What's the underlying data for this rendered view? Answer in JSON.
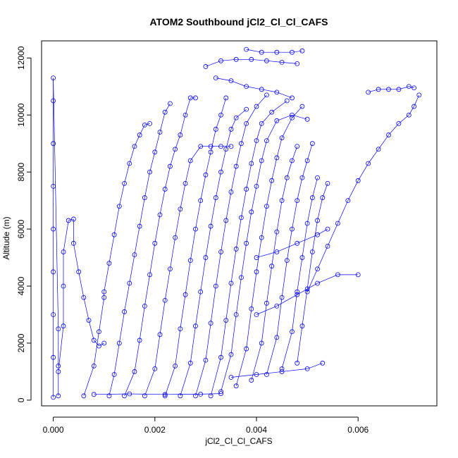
{
  "chart_data": {
    "type": "scatter",
    "title": "ATOM2 Southbound jCl2_Cl_Cl_CAFS",
    "xlabel": "jCl2_Cl_Cl_CAFS",
    "ylabel": "Altitude (m)",
    "xlim": [
      -0.00023,
      0.00755
    ],
    "ylim": [
      -200,
      12600
    ],
    "x_ticks": [
      0.0,
      0.002,
      0.004,
      0.006
    ],
    "x_tick_labels": [
      "0.000",
      "0.002",
      "0.004",
      "0.006"
    ],
    "y_ticks": [
      0,
      2000,
      4000,
      6000,
      8000,
      10000,
      12000
    ],
    "y_tick_labels": [
      "0",
      "2000",
      "4000",
      "6000",
      "8000",
      "10000",
      "12000"
    ],
    "grid": false,
    "legend": "none",
    "marker": "open-circle",
    "color": "#0000ff",
    "series": [
      {
        "points": [
          [
            0.0,
            100
          ],
          [
            0.0,
            1500
          ],
          [
            0.0,
            3000
          ],
          [
            0.0,
            4500
          ],
          [
            0.0,
            6000
          ],
          [
            0.0,
            7500
          ],
          [
            0.0,
            9000
          ],
          [
            0.0,
            10500
          ],
          [
            0.0,
            11300
          ],
          [
            0.0001,
            2500
          ],
          [
            0.0001,
            1200
          ]
        ]
      },
      {
        "points": [
          [
            0.0001,
            150
          ],
          [
            0.0001,
            1000
          ],
          [
            0.0002,
            2600
          ],
          [
            0.0002,
            4000
          ],
          [
            0.0002,
            5200
          ],
          [
            0.0003,
            6300
          ],
          [
            0.0004,
            6350
          ],
          [
            0.0004,
            5500
          ],
          [
            0.0005,
            4500
          ],
          [
            0.0006,
            3600
          ],
          [
            0.0007,
            2800
          ],
          [
            0.0008,
            2100
          ],
          [
            0.0009,
            1900
          ],
          [
            0.001,
            2000
          ]
        ]
      },
      {
        "points": [
          [
            0.0006,
            150
          ],
          [
            0.0008,
            1200
          ],
          [
            0.0009,
            2400
          ],
          [
            0.001,
            3600
          ],
          [
            0.001,
            3800
          ],
          [
            0.0011,
            4800
          ],
          [
            0.0012,
            5800
          ],
          [
            0.0013,
            6800
          ],
          [
            0.0014,
            7600
          ],
          [
            0.0015,
            8300
          ],
          [
            0.0016,
            8900
          ],
          [
            0.0017,
            9300
          ],
          [
            0.0018,
            9650
          ],
          [
            0.0019,
            9700
          ]
        ]
      },
      {
        "points": [
          [
            0.0011,
            150
          ],
          [
            0.0012,
            900
          ],
          [
            0.0013,
            2000
          ],
          [
            0.0014,
            3100
          ],
          [
            0.0015,
            4100
          ],
          [
            0.0016,
            5100
          ],
          [
            0.0017,
            6100
          ],
          [
            0.0018,
            7100
          ],
          [
            0.0019,
            8000
          ],
          [
            0.002,
            8700
          ],
          [
            0.0021,
            9400
          ],
          [
            0.0022,
            10100
          ],
          [
            0.0023,
            10400
          ]
        ]
      },
      {
        "points": [
          [
            0.0014,
            150
          ],
          [
            0.0016,
            1000
          ],
          [
            0.0017,
            2100
          ],
          [
            0.0018,
            3300
          ],
          [
            0.0019,
            4400
          ],
          [
            0.002,
            5500
          ],
          [
            0.0021,
            6500
          ],
          [
            0.0022,
            7400
          ],
          [
            0.0023,
            8200
          ],
          [
            0.0024,
            8800
          ],
          [
            0.0025,
            9300
          ],
          [
            0.0026,
            10000
          ],
          [
            0.0027,
            10600
          ],
          [
            0.0028,
            10600
          ]
        ]
      },
      {
        "points": [
          [
            0.0018,
            150
          ],
          [
            0.002,
            1100
          ],
          [
            0.0021,
            2300
          ],
          [
            0.0022,
            3500
          ],
          [
            0.0023,
            4600
          ],
          [
            0.0024,
            5700
          ],
          [
            0.0025,
            6700
          ],
          [
            0.0026,
            7600
          ],
          [
            0.0027,
            8400
          ],
          [
            0.0029,
            8900
          ],
          [
            0.0031,
            8900
          ],
          [
            0.0033,
            8900
          ],
          [
            0.0035,
            8900
          ]
        ]
      },
      {
        "points": [
          [
            0.0022,
            150
          ],
          [
            0.0024,
            1200
          ],
          [
            0.0025,
            2500
          ],
          [
            0.0026,
            3700
          ],
          [
            0.0027,
            4900
          ],
          [
            0.0028,
            6000
          ],
          [
            0.0029,
            7000
          ],
          [
            0.003,
            7900
          ],
          [
            0.0031,
            8700
          ],
          [
            0.0032,
            9500
          ],
          [
            0.0033,
            10000
          ],
          [
            0.0034,
            10600
          ]
        ]
      },
      {
        "points": [
          [
            0.0025,
            150
          ],
          [
            0.0027,
            1300
          ],
          [
            0.0028,
            2600
          ],
          [
            0.0029,
            3800
          ],
          [
            0.003,
            5000
          ],
          [
            0.0031,
            6100
          ],
          [
            0.0032,
            7100
          ],
          [
            0.0033,
            8000
          ],
          [
            0.0034,
            8800
          ],
          [
            0.0035,
            9500
          ],
          [
            0.0036,
            9900
          ],
          [
            0.0038,
            10200
          ]
        ]
      },
      {
        "points": [
          [
            0.0028,
            150
          ],
          [
            0.003,
            1400
          ],
          [
            0.0031,
            2700
          ],
          [
            0.0032,
            4000
          ],
          [
            0.0033,
            5200
          ],
          [
            0.0034,
            6300
          ],
          [
            0.0035,
            7300
          ],
          [
            0.0036,
            8200
          ],
          [
            0.0037,
            9000
          ],
          [
            0.0038,
            9700
          ],
          [
            0.004,
            10300
          ],
          [
            0.0042,
            10700
          ]
        ]
      },
      {
        "points": [
          [
            0.0031,
            150
          ],
          [
            0.0033,
            1500
          ],
          [
            0.0034,
            2800
          ],
          [
            0.0035,
            4100
          ],
          [
            0.0036,
            5300
          ],
          [
            0.0037,
            6400
          ],
          [
            0.0038,
            7400
          ],
          [
            0.0039,
            8300
          ],
          [
            0.004,
            9100
          ],
          [
            0.0041,
            9700
          ],
          [
            0.0043,
            10100
          ],
          [
            0.0046,
            10500
          ]
        ]
      },
      {
        "points": [
          [
            0.0033,
            300
          ],
          [
            0.0035,
            1600
          ],
          [
            0.0036,
            3000
          ],
          [
            0.0037,
            4300
          ],
          [
            0.0038,
            5500
          ],
          [
            0.0039,
            6600
          ],
          [
            0.004,
            7500
          ],
          [
            0.0041,
            8400
          ],
          [
            0.0042,
            9100
          ],
          [
            0.0044,
            9800
          ],
          [
            0.0047,
            10000
          ],
          [
            0.005,
            9850
          ]
        ]
      },
      {
        "points": [
          [
            0.0036,
            500
          ],
          [
            0.0038,
            1800
          ],
          [
            0.0039,
            3200
          ],
          [
            0.004,
            4500
          ],
          [
            0.0041,
            5700
          ],
          [
            0.0042,
            6800
          ],
          [
            0.0043,
            7700
          ],
          [
            0.0044,
            8500
          ],
          [
            0.0045,
            9200
          ],
          [
            0.0047,
            9900
          ],
          [
            0.0049,
            10300
          ]
        ]
      },
      {
        "points": [
          [
            0.0039,
            700
          ],
          [
            0.0041,
            2000
          ],
          [
            0.0042,
            3400
          ],
          [
            0.0043,
            4700
          ],
          [
            0.0044,
            5900
          ],
          [
            0.0045,
            7000
          ],
          [
            0.0046,
            7800
          ],
          [
            0.0047,
            8400
          ],
          [
            0.0048,
            8900
          ]
        ]
      },
      {
        "points": [
          [
            0.0042,
            900
          ],
          [
            0.0044,
            2200
          ],
          [
            0.0045,
            3600
          ],
          [
            0.0046,
            4900
          ],
          [
            0.0047,
            6000
          ],
          [
            0.0048,
            7000
          ],
          [
            0.0049,
            7800
          ],
          [
            0.005,
            8400
          ],
          [
            0.0051,
            9000
          ]
        ]
      },
      {
        "points": [
          [
            0.0045,
            1100
          ],
          [
            0.0047,
            2400
          ],
          [
            0.0048,
            3800
          ],
          [
            0.0049,
            5000
          ],
          [
            0.005,
            6200
          ],
          [
            0.0051,
            7100
          ],
          [
            0.0052,
            7800
          ]
        ]
      },
      {
        "points": [
          [
            0.0048,
            1300
          ],
          [
            0.0049,
            2600
          ],
          [
            0.005,
            3900
          ],
          [
            0.0051,
            5200
          ],
          [
            0.0052,
            6300
          ],
          [
            0.0053,
            7100
          ],
          [
            0.0054,
            7600
          ]
        ]
      },
      {
        "points": [
          [
            0.005,
            3800
          ],
          [
            0.0052,
            4600
          ],
          [
            0.0054,
            5400
          ],
          [
            0.0056,
            6200
          ],
          [
            0.0058,
            7000
          ],
          [
            0.006,
            7700
          ],
          [
            0.0062,
            8300
          ],
          [
            0.0064,
            8800
          ],
          [
            0.0066,
            9300
          ],
          [
            0.0068,
            9700
          ],
          [
            0.007,
            10000
          ],
          [
            0.0071,
            10300
          ],
          [
            0.0072,
            10700
          ]
        ]
      },
      {
        "points": [
          [
            0.0062,
            10800
          ],
          [
            0.0064,
            10900
          ],
          [
            0.0066,
            10900
          ],
          [
            0.0068,
            10900
          ],
          [
            0.007,
            11000
          ],
          [
            0.0071,
            10950
          ]
        ]
      },
      {
        "points": [
          [
            0.0038,
            12300
          ],
          [
            0.0041,
            12200
          ],
          [
            0.0044,
            12200
          ],
          [
            0.0047,
            12200
          ],
          [
            0.0049,
            12250
          ]
        ]
      },
      {
        "points": [
          [
            0.003,
            11700
          ],
          [
            0.0033,
            11900
          ],
          [
            0.0036,
            11950
          ],
          [
            0.0039,
            11950
          ],
          [
            0.0042,
            11900
          ],
          [
            0.0045,
            11850
          ],
          [
            0.0048,
            11800
          ]
        ]
      },
      {
        "points": [
          [
            0.0032,
            11300
          ],
          [
            0.0035,
            11200
          ],
          [
            0.0038,
            11000
          ],
          [
            0.0041,
            10900
          ],
          [
            0.0044,
            10800
          ],
          [
            0.0047,
            10600
          ]
        ]
      },
      {
        "points": [
          [
            0.0008,
            200
          ],
          [
            0.0015,
            220
          ],
          [
            0.0022,
            200
          ],
          [
            0.0029,
            210
          ],
          [
            0.0033,
            230
          ]
        ]
      },
      {
        "points": [
          [
            0.0035,
            800
          ],
          [
            0.004,
            900
          ],
          [
            0.0045,
            1000
          ],
          [
            0.005,
            1100
          ],
          [
            0.0053,
            1300
          ]
        ]
      },
      {
        "points": [
          [
            0.004,
            3000
          ],
          [
            0.0044,
            3300
          ],
          [
            0.0048,
            3700
          ],
          [
            0.0052,
            4100
          ],
          [
            0.0056,
            4400
          ],
          [
            0.006,
            4400
          ]
        ]
      },
      {
        "points": [
          [
            0.004,
            5000
          ],
          [
            0.0044,
            5200
          ],
          [
            0.0048,
            5500
          ],
          [
            0.0052,
            5800
          ],
          [
            0.0054,
            6000
          ]
        ]
      }
    ]
  }
}
